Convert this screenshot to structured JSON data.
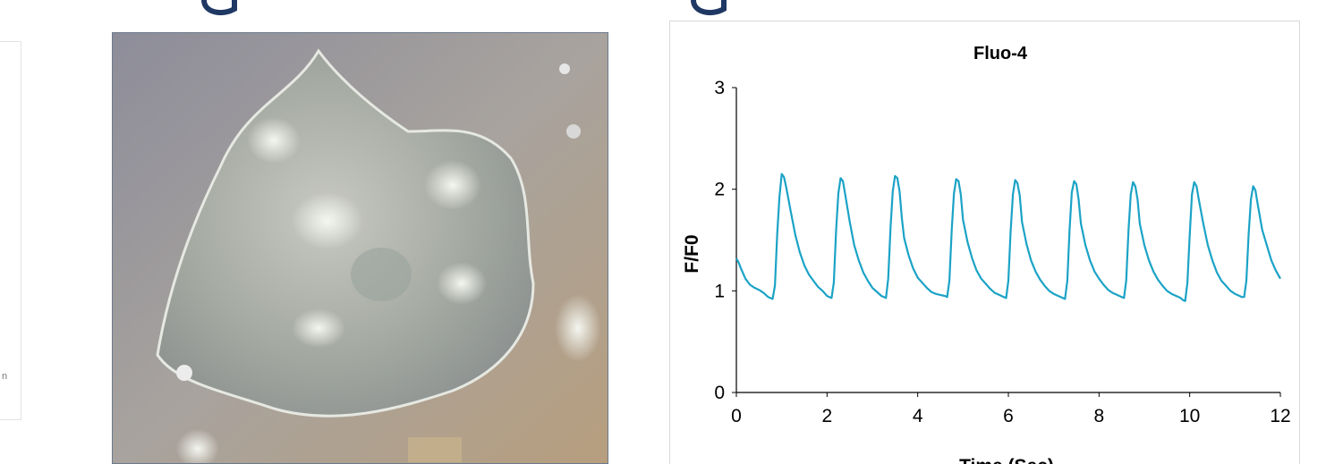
{
  "slide": {
    "title_color": "#1f3864"
  },
  "left_panel": {
    "fragment": "n"
  },
  "micrograph": {
    "icon": "phase-contrast-cell-micrograph"
  },
  "chart_data": {
    "type": "line",
    "title": "Fluo-4",
    "xlabel": "Time (Sec)",
    "ylabel": "F/F0",
    "xlim": [
      0,
      12
    ],
    "ylim": [
      0,
      3
    ],
    "x_ticks": [
      0,
      2,
      4,
      6,
      8,
      10,
      12
    ],
    "y_ticks": [
      0,
      1,
      2,
      3
    ],
    "grid": false,
    "legend": "none",
    "line_color": "#1ba3c6",
    "series": [
      {
        "x": [
          0.0,
          0.05,
          0.1,
          0.2,
          0.3,
          0.4,
          0.5,
          0.6,
          0.7,
          0.75,
          0.8,
          0.85,
          0.9,
          0.95,
          1.0,
          1.05,
          1.1,
          1.2,
          1.3,
          1.4,
          1.5,
          1.6,
          1.7,
          1.8,
          1.9,
          2.0,
          2.05,
          2.1,
          2.15,
          2.2,
          2.25,
          2.3,
          2.35,
          2.4,
          2.5,
          2.6,
          2.7,
          2.8,
          2.9,
          3.0,
          3.1,
          3.2,
          3.3,
          3.35,
          3.4,
          3.45,
          3.5,
          3.55,
          3.6,
          3.65,
          3.7,
          3.8,
          3.9,
          4.0,
          4.1,
          4.2,
          4.3,
          4.4,
          4.5,
          4.6,
          4.65,
          4.7,
          4.75,
          4.8,
          4.85,
          4.9,
          4.95,
          5.0,
          5.1,
          5.2,
          5.3,
          5.4,
          5.5,
          5.6,
          5.7,
          5.8,
          5.9,
          5.95,
          6.0,
          6.05,
          6.1,
          6.15,
          6.2,
          6.25,
          6.3,
          6.4,
          6.5,
          6.6,
          6.7,
          6.8,
          6.9,
          7.0,
          7.1,
          7.2,
          7.25,
          7.3,
          7.35,
          7.4,
          7.45,
          7.5,
          7.55,
          7.6,
          7.7,
          7.8,
          7.9,
          8.0,
          8.1,
          8.2,
          8.3,
          8.4,
          8.5,
          8.55,
          8.6,
          8.65,
          8.7,
          8.75,
          8.8,
          8.85,
          8.9,
          9.0,
          9.1,
          9.2,
          9.3,
          9.4,
          9.5,
          9.6,
          9.7,
          9.8,
          9.85,
          9.9,
          9.95,
          10.0,
          10.05,
          10.1,
          10.15,
          10.2,
          10.3,
          10.4,
          10.5,
          10.6,
          10.7,
          10.8,
          10.9,
          11.0,
          11.1,
          11.15,
          11.2,
          11.25,
          11.3,
          11.35,
          11.4,
          11.45,
          11.5,
          11.6,
          11.7,
          11.8,
          11.9,
          12.0
        ],
        "y": [
          1.32,
          1.28,
          1.22,
          1.12,
          1.06,
          1.03,
          1.01,
          0.98,
          0.94,
          0.93,
          0.92,
          1.05,
          1.55,
          1.92,
          2.15,
          2.12,
          2.02,
          1.78,
          1.55,
          1.38,
          1.25,
          1.16,
          1.1,
          1.04,
          1.0,
          0.95,
          0.94,
          0.93,
          1.08,
          1.6,
          1.96,
          2.11,
          2.08,
          1.95,
          1.68,
          1.45,
          1.3,
          1.18,
          1.1,
          1.03,
          0.99,
          0.95,
          0.93,
          1.12,
          1.62,
          1.98,
          2.13,
          2.11,
          1.98,
          1.72,
          1.52,
          1.35,
          1.22,
          1.13,
          1.08,
          1.03,
          0.99,
          0.97,
          0.96,
          0.95,
          0.94,
          1.1,
          1.6,
          1.96,
          2.1,
          2.08,
          1.95,
          1.7,
          1.48,
          1.32,
          1.2,
          1.12,
          1.07,
          1.02,
          0.98,
          0.96,
          0.94,
          0.93,
          1.1,
          1.58,
          1.95,
          2.09,
          2.06,
          1.94,
          1.68,
          1.46,
          1.3,
          1.19,
          1.11,
          1.05,
          1.0,
          0.97,
          0.95,
          0.93,
          0.92,
          1.1,
          1.6,
          1.97,
          2.08,
          2.05,
          1.9,
          1.66,
          1.45,
          1.3,
          1.19,
          1.12,
          1.06,
          1.01,
          0.98,
          0.96,
          0.94,
          0.93,
          1.1,
          1.6,
          1.95,
          2.07,
          2.03,
          1.9,
          1.66,
          1.45,
          1.3,
          1.19,
          1.11,
          1.05,
          1.0,
          0.97,
          0.95,
          0.93,
          0.91,
          0.9,
          1.08,
          1.55,
          1.95,
          2.07,
          2.03,
          1.9,
          1.66,
          1.45,
          1.3,
          1.18,
          1.1,
          1.05,
          1.0,
          0.97,
          0.95,
          0.94,
          0.94,
          1.1,
          1.55,
          1.9,
          2.03,
          1.99,
          1.85,
          1.6,
          1.45,
          1.3,
          1.2,
          1.12
        ]
      }
    ]
  }
}
